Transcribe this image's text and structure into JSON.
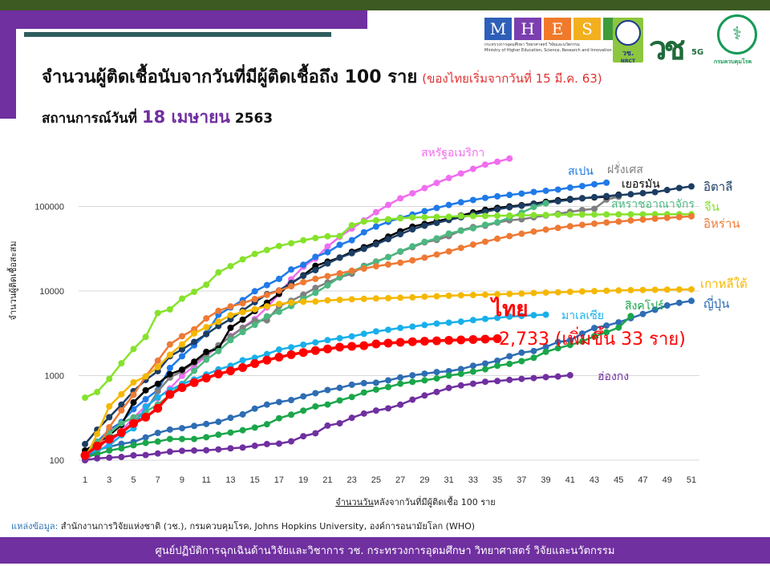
{
  "header": {
    "title": "จำนวนผู้ติดเชื้อนับจากวันที่มีผู้ติดเชื้อถึง 100 ราย",
    "title_note": "(ของไทยเริ่มจากวันที่ 15 มี.ค. 63)",
    "subtitle_prefix": "สถานการณ์วันที่",
    "subtitle_date": "18 เมษายน",
    "subtitle_year": "2563",
    "logos": {
      "mhesi_letters": [
        "M",
        "H",
        "E",
        "S",
        "I"
      ],
      "mhesi_colors": [
        "#2e5fb8",
        "#7b3fb0",
        "#f07a2a",
        "#f2b01e",
        "#3f9c3a"
      ],
      "mhesi_th": "กระทรวงการอุดมศึกษา วิทยาศาสตร์ วิจัยและนวัตกรรม",
      "mhesi_en": "Ministry of Higher Education, Science, Research and Innovation",
      "nrct": "วช.",
      "nrct_en": "NRCT",
      "vc_5g": "5G",
      "moph": "กรมควบคุมโรค"
    }
  },
  "chart_data": {
    "type": "line",
    "xlabel_underlined": "จำนวนวัน",
    "xlabel_rest": "หลังจากวันที่มีผู้ติดเชื้อ 100 ราย",
    "ylabel": "จำนวนผู้ติดเชื้อสะสม",
    "y_scale": "log",
    "ylim": [
      100,
      400000
    ],
    "xlim": [
      1,
      51
    ],
    "x_ticks": [
      1,
      3,
      5,
      7,
      9,
      11,
      13,
      15,
      17,
      19,
      21,
      23,
      25,
      27,
      29,
      31,
      33,
      35,
      37,
      39,
      41,
      43,
      45,
      47,
      49,
      51
    ],
    "y_ticks": [
      100,
      1000,
      10000,
      100000
    ],
    "y_tick_labels": [
      "100",
      "1000",
      "10000",
      "100000"
    ],
    "grid": "horizontal",
    "series": [
      {
        "name": "สหรัฐอเมริกา",
        "color": "#f06ef0",
        "values": [
          100,
          124,
          158,
          221,
          319,
          435,
          541,
          704,
          994,
          1301,
          1697,
          2247,
          2943,
          3680,
          4663,
          6411,
          9197,
          13779,
          19367,
          24192,
          33592,
          43781,
          54856,
          68211,
          85435,
          104126,
          124686,
          143025,
          164620,
          189618,
          216721,
          245573,
          277965,
          312237,
          337635,
          368196
        ]
      },
      {
        "name": "สเปน",
        "color": "#1f7ae8",
        "values": [
          120,
          165,
          228,
          282,
          401,
          525,
          674,
          1231,
          1695,
          2277,
          3146,
          5232,
          6391,
          7798,
          9942,
          11748,
          13910,
          17963,
          20410,
          25374,
          28768,
          35136,
          39885,
          49515,
          57786,
          65719,
          73235,
          80110,
          87956,
          95923,
          104118,
          112065,
          119199,
          126168,
          131646,
          136675,
          141942,
          148220,
          153222,
          158273,
          166831,
          174060,
          182816,
          190839
        ]
      },
      {
        "name": "ฝรั่งเศส",
        "color": "#7f7f7f",
        "values": [
          100,
          130,
          191,
          204,
          285,
          377,
          653,
          949,
          1126,
          1412,
          1784,
          2281,
          2876,
          3661,
          4469,
          4499,
          6633,
          7652,
          9043,
          10871,
          12612,
          14459,
          16018,
          19856,
          22304,
          25233,
          29155,
          32964,
          37575,
          40174,
          44550,
          52128,
          56989,
          59105,
          64338,
          68605,
          70478,
          74390,
          78167,
          82048,
          86334,
          90676,
          93790,
          120633,
          130253
        ]
      },
      {
        "name": "เยอรมัน",
        "color": "#000000",
        "values": [
          130,
          159,
          196,
          262,
          482,
          670,
          799,
          1040,
          1176,
          1457,
          1908,
          2078,
          3675,
          4585,
          5795,
          7272,
          9257,
          12327,
          15320,
          19848,
          22213,
          24873,
          29056,
          32986,
          37323,
          43938,
          50871,
          57695,
          62095,
          66885,
          71808,
          77872,
          84794,
          91159,
          96092,
          100123,
          103374,
          107663,
          113296,
          118181,
          122171,
          124908,
          127854,
          130072,
          137698
        ]
      },
      {
        "name": "อิตาลี",
        "color": "#1c3d63",
        "values": [
          155,
          229,
          322,
          453,
          655,
          888,
          1128,
          1694,
          2036,
          2502,
          3089,
          3858,
          4636,
          5883,
          7375,
          9172,
          10149,
          12462,
          15113,
          17660,
          21157,
          24747,
          27980,
          31506,
          35713,
          41035,
          47021,
          53578,
          59138,
          63927,
          69176,
          74386,
          80589,
          86498,
          92472,
          97689,
          101739,
          105792,
          110574,
          115242,
          119827,
          124632,
          128948,
          132547,
          135586,
          139422,
          143626,
          147577,
          156363,
          165155,
          172434
        ]
      },
      {
        "name": "สหราชอาณาจักร",
        "color": "#4bb880",
        "values": [
          116,
          164,
          207,
          273,
          321,
          373,
          456,
          590,
          798,
          1140,
          1543,
          1950,
          2626,
          3269,
          3983,
          5018,
          5683,
          6650,
          8077,
          9529,
          11658,
          14543,
          17089,
          19522,
          22141,
          25150,
          29474,
          33718,
          38168,
          41903,
          47806,
          51608,
          55242,
          60733,
          65077,
          73758,
          84279,
          98476,
          108692
        ]
      },
      {
        "name": "จีน",
        "color": "#86e22c",
        "values": [
          548,
          639,
          916,
          1399,
          2062,
          2863,
          5494,
          6070,
          8124,
          9783,
          11871,
          16607,
          19693,
          23680,
          27409,
          30553,
          34075,
          36778,
          39790,
          42306,
          44327,
          44699,
          59832,
          66292,
          68347,
          70446,
          72364,
          74139,
          74546,
          74999,
          75472,
          76922,
          76938,
          77152,
          77660,
          78065,
          78498,
          78824,
          79251,
          79824,
          80026,
          80151,
          80270,
          80409,
          80552,
          80651,
          80695,
          80735,
          80754,
          80778,
          80793
        ]
      },
      {
        "name": "อิหร่าน",
        "color": "#ee7a35",
        "values": [
          100,
          139,
          245,
          388,
          593,
          978,
          1501,
          2336,
          2922,
          3513,
          4747,
          5823,
          6566,
          7161,
          8042,
          9000,
          10075,
          11364,
          12729,
          13938,
          14991,
          16169,
          17361,
          18407,
          19644,
          20610,
          21638,
          23049,
          24811,
          27017,
          29406,
          32332,
          35408,
          38309,
          41495,
          44605,
          47593,
          50468,
          53183,
          55743,
          58226,
          60500,
          62589,
          64586,
          66220,
          68192,
          70029,
          71686,
          73303,
          74877,
          76389
        ]
      },
      {
        "name": "เกาหลีใต้",
        "color": "#f5b800",
        "values": [
          104,
          204,
          433,
          602,
          833,
          977,
          1261,
          1766,
          2337,
          3150,
          3736,
          4335,
          5186,
          5621,
          6088,
          6593,
          7041,
          7314,
          7478,
          7513,
          7755,
          7869,
          7979,
          8086,
          8162,
          8236,
          8320,
          8413,
          8565,
          8652,
          8799,
          8897,
          8961,
          9037,
          9137,
          9241,
          9332,
          9478,
          9583,
          9661,
          9786,
          9887,
          9976,
          10062,
          10156,
          10237,
          10284,
          10331,
          10384,
          10423,
          10450
        ]
      },
      {
        "name": "ญี่ปุ่น",
        "color": "#2e6db3",
        "values": [
          105,
          132,
          144,
          156,
          164,
          186,
          210,
          230,
          239,
          254,
          268,
          284,
          317,
          348,
          407,
          454,
          487,
          514,
          568,
          619,
          675,
          716,
          780,
          814,
          824,
          878,
          950,
          1007,
          1054,
          1101,
          1128,
          1193,
          1307,
          1387,
          1499,
          1693,
          1866,
          1953,
          2178,
          2495,
          2617,
          3139,
          3654,
          3906,
          4257,
          4768,
          5347,
          6005,
          6748,
          7255,
          7645
        ]
      },
      {
        "name": "มาเลเซีย",
        "color": "#18b0ea",
        "values": [
          117,
          129,
          149,
          197,
          238,
          428,
          553,
          673,
          790,
          900,
          1030,
          1183,
          1306,
          1518,
          1624,
          1796,
          2031,
          2161,
          2320,
          2470,
          2626,
          2766,
          2908,
          3116,
          3333,
          3483,
          3662,
          3793,
          3963,
          4119,
          4228,
          4346,
          4530,
          4683,
          4817,
          4987,
          5072,
          5182,
          5251
        ]
      },
      {
        "name": "สิงคโปร์",
        "color": "#1aa64a",
        "values": [
          110,
          117,
          130,
          138,
          150,
          160,
          166,
          178,
          178,
          178,
          187,
          200,
          212,
          226,
          243,
          266,
          313,
          345,
          385,
          432,
          455,
          509,
          558,
          631,
          683,
          732,
          802,
          844,
          879,
          926,
          1000,
          1049,
          1114,
          1189,
          1309,
          1375,
          1481,
          1623,
          1910,
          2108,
          2299,
          2532,
          2918,
          3252,
          3699,
          5050
        ]
      },
      {
        "name": "ฮ่องกง",
        "color": "#7030a0",
        "values": [
          100,
          105,
          107,
          109,
          114,
          115,
          120,
          126,
          129,
          130,
          131,
          134,
          138,
          141,
          148,
          155,
          157,
          167,
          192,
          208,
          256,
          273,
          317,
          356,
          386,
          410,
          453,
          519,
          582,
          641,
          714,
          765,
          802,
          845,
          862,
          890,
          915,
          935,
          960,
          975,
          1010
        ]
      },
      {
        "name": "ไทย",
        "color": "#ff0000",
        "values": [
          114,
          147,
          177,
          212,
          272,
          322,
          411,
          599,
          721,
          827,
          934,
          1045,
          1136,
          1245,
          1388,
          1524,
          1651,
          1771,
          1875,
          1978,
          2067,
          2169,
          2220,
          2258,
          2369,
          2423,
          2473,
          2518,
          2551,
          2579,
          2613,
          2643,
          2672,
          2700,
          2733
        ]
      }
    ],
    "annotation": "2,733 (เพิ่มขึ้น 33 ราย)"
  },
  "source": {
    "label": "แหล่งข้อมูล:",
    "text": "สำนักงานการวิจัยแห่งชาติ (วช.), กรมควบคุมโรค, Johns Hopkins University, องค์การอนามัยโลก (WHO)"
  },
  "footer": {
    "text": "ศูนย์ปฏิบัติการฉุกเฉินด้านวิจัยและวิชาการ   วช.   กระทรวงการอุดมศึกษา วิทยาศาสตร์ วิจัยและนวัตกรรม"
  }
}
